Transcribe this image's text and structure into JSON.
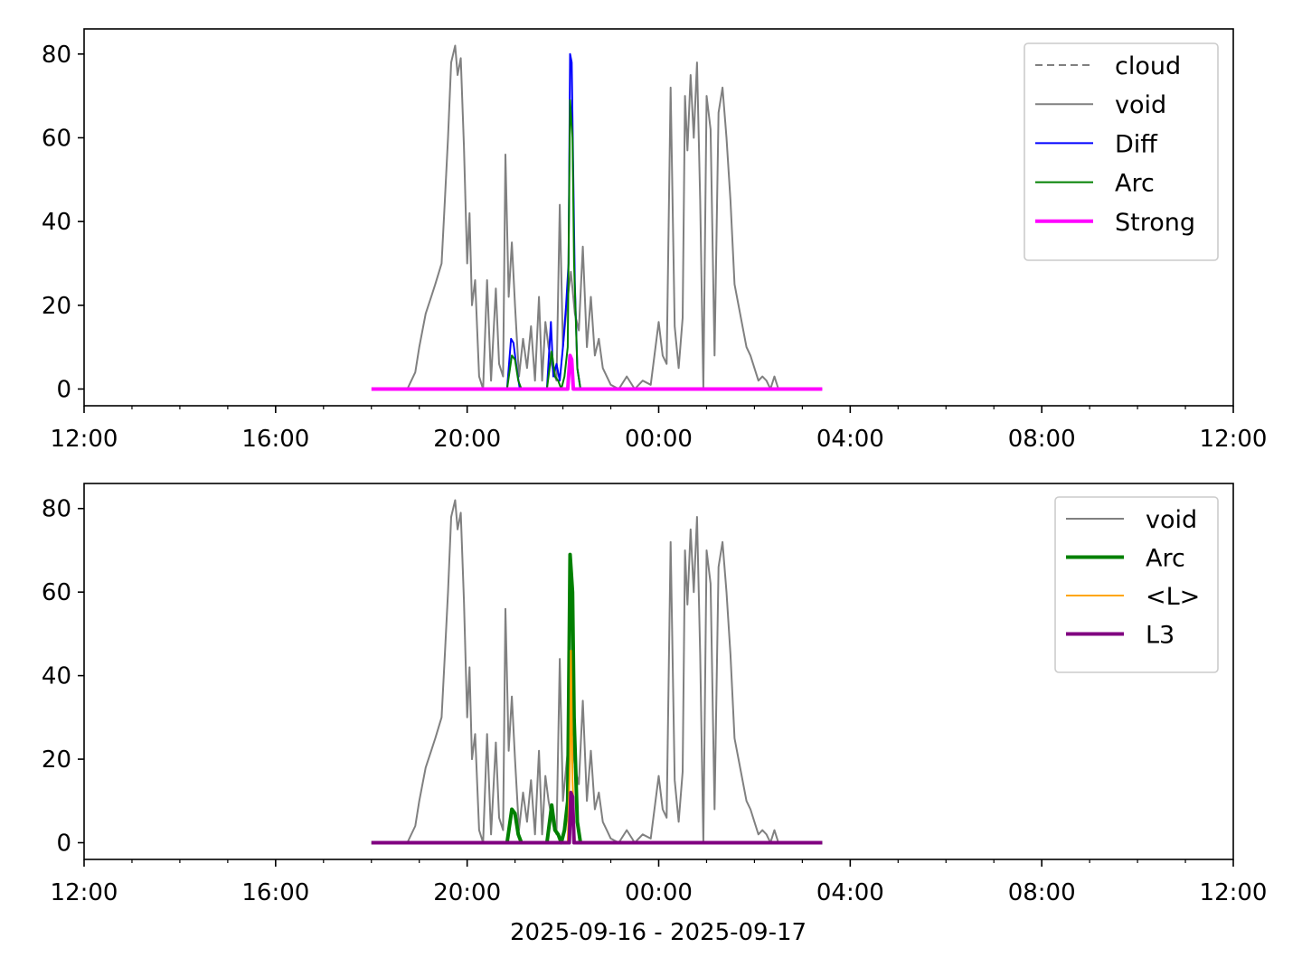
{
  "chart_data": [
    {
      "type": "line",
      "title": "",
      "xlabel": "",
      "ylabel": "",
      "xlim": [
        "2025-09-16 12:00",
        "2025-09-17 12:00"
      ],
      "ylim": [
        -4,
        86
      ],
      "xticks": [
        "12:00",
        "16:00",
        "20:00",
        "00:00",
        "04:00",
        "08:00",
        "12:00"
      ],
      "yticks": [
        "0",
        "20",
        "40",
        "60",
        "80"
      ],
      "grid": false,
      "legend_position": "top-right",
      "series": [
        {
          "name": "cloud",
          "color": "#808080",
          "style": "dashed",
          "legend_only": true,
          "x": [],
          "y": []
        },
        {
          "name": "void",
          "color": "#808080",
          "style": "solid",
          "x": [
            "2025-09-16 18:45",
            "2025-09-16 18:55",
            "2025-09-16 19:00",
            "2025-09-16 19:08",
            "2025-09-16 19:15",
            "2025-09-16 19:20",
            "2025-09-16 19:28",
            "2025-09-16 19:32",
            "2025-09-16 19:36",
            "2025-09-16 19:40",
            "2025-09-16 19:45",
            "2025-09-16 19:48",
            "2025-09-16 19:52",
            "2025-09-16 19:56",
            "2025-09-16 20:00",
            "2025-09-16 20:03",
            "2025-09-16 20:06",
            "2025-09-16 20:10",
            "2025-09-16 20:15",
            "2025-09-16 20:20",
            "2025-09-16 20:25",
            "2025-09-16 20:30",
            "2025-09-16 20:36",
            "2025-09-16 20:40",
            "2025-09-16 20:45",
            "2025-09-16 20:48",
            "2025-09-16 20:52",
            "2025-09-16 20:56",
            "2025-09-16 21:00",
            "2025-09-16 21:05",
            "2025-09-16 21:10",
            "2025-09-16 21:15",
            "2025-09-16 21:20",
            "2025-09-16 21:25",
            "2025-09-16 21:30",
            "2025-09-16 21:34",
            "2025-09-16 21:38",
            "2025-09-16 21:42",
            "2025-09-16 21:48",
            "2025-09-16 21:52",
            "2025-09-16 21:56",
            "2025-09-16 22:00",
            "2025-09-16 22:05",
            "2025-09-16 22:10",
            "2025-09-16 22:15",
            "2025-09-16 22:20",
            "2025-09-16 22:25",
            "2025-09-16 22:30",
            "2025-09-16 22:35",
            "2025-09-16 22:40",
            "2025-09-16 22:45",
            "2025-09-16 22:50",
            "2025-09-16 22:55",
            "2025-09-16 23:00",
            "2025-09-16 23:10",
            "2025-09-16 23:20",
            "2025-09-16 23:30",
            "2025-09-16 23:40",
            "2025-09-16 23:50",
            "2025-09-17 00:00",
            "2025-09-17 00:05",
            "2025-09-17 00:10",
            "2025-09-17 00:15",
            "2025-09-17 00:20",
            "2025-09-17 00:25",
            "2025-09-17 00:30",
            "2025-09-17 00:33",
            "2025-09-17 00:36",
            "2025-09-17 00:40",
            "2025-09-17 00:44",
            "2025-09-17 00:48",
            "2025-09-17 00:52",
            "2025-09-17 00:56",
            "2025-09-17 01:00",
            "2025-09-17 01:05",
            "2025-09-17 01:10",
            "2025-09-17 01:15",
            "2025-09-17 01:20",
            "2025-09-17 01:25",
            "2025-09-17 01:30",
            "2025-09-17 01:35",
            "2025-09-17 01:40",
            "2025-09-17 01:45",
            "2025-09-17 01:50",
            "2025-09-17 01:55",
            "2025-09-17 02:00",
            "2025-09-17 02:05",
            "2025-09-17 02:10",
            "2025-09-17 02:15",
            "2025-09-17 02:20",
            "2025-09-17 02:25",
            "2025-09-17 02:30",
            "2025-09-17 03:25"
          ],
          "y": [
            0,
            4,
            10,
            18,
            22,
            25,
            30,
            45,
            60,
            78,
            82,
            75,
            79,
            58,
            30,
            42,
            20,
            26,
            3,
            0,
            26,
            2,
            24,
            6,
            3,
            56,
            22,
            35,
            20,
            3,
            12,
            5,
            15,
            2,
            22,
            2,
            16,
            10,
            4,
            2,
            44,
            10,
            20,
            28,
            18,
            14,
            34,
            10,
            22,
            8,
            12,
            5,
            3,
            1,
            0,
            3,
            0,
            2,
            1,
            16,
            8,
            6,
            72,
            15,
            5,
            17,
            70,
            57,
            75,
            60,
            78,
            45,
            0,
            70,
            62,
            8,
            66,
            72,
            60,
            45,
            25,
            20,
            15,
            10,
            8,
            5,
            2,
            3,
            2,
            0,
            3,
            0,
            0
          ]
        },
        {
          "name": "Diff",
          "color": "#0000ff",
          "style": "solid",
          "x": [
            "2025-09-16 20:50",
            "2025-09-16 20:55",
            "2025-09-16 20:58",
            "2025-09-16 21:02",
            "2025-09-16 21:06",
            "2025-09-16 21:40",
            "2025-09-16 21:45",
            "2025-09-16 21:48",
            "2025-09-16 21:52",
            "2025-09-16 21:56",
            "2025-09-16 22:00",
            "2025-09-16 22:04",
            "2025-09-16 22:07",
            "2025-09-16 22:09",
            "2025-09-16 22:11",
            "2025-09-16 22:13",
            "2025-09-16 22:15",
            "2025-09-16 22:18",
            "2025-09-16 22:22"
          ],
          "y": [
            0,
            12,
            11,
            5,
            0,
            0,
            16,
            3,
            6,
            2,
            10,
            20,
            30,
            80,
            78,
            50,
            25,
            5,
            0
          ]
        },
        {
          "name": "Arc",
          "color": "#008000",
          "style": "solid",
          "x": [
            "2025-09-16 20:50",
            "2025-09-16 20:56",
            "2025-09-16 21:00",
            "2025-09-16 21:04",
            "2025-09-16 21:08",
            "2025-09-16 21:40",
            "2025-09-16 21:46",
            "2025-09-16 21:50",
            "2025-09-16 21:54",
            "2025-09-16 21:58",
            "2025-09-16 22:02",
            "2025-09-16 22:06",
            "2025-09-16 22:09",
            "2025-09-16 22:12",
            "2025-09-16 22:14",
            "2025-09-16 22:18",
            "2025-09-16 22:22"
          ],
          "y": [
            0,
            8,
            7,
            2,
            0,
            0,
            9,
            3,
            2,
            0,
            3,
            10,
            69,
            60,
            30,
            5,
            0
          ]
        },
        {
          "name": "Strong",
          "color": "#ff00ff",
          "style": "solid",
          "x": [
            "2025-09-16 18:00",
            "2025-09-16 22:06",
            "2025-09-16 22:09",
            "2025-09-16 22:11",
            "2025-09-16 22:13",
            "2025-09-17 03:25"
          ],
          "y": [
            0,
            0,
            8,
            7,
            0,
            0
          ]
        }
      ]
    },
    {
      "type": "line",
      "title": "",
      "xlabel": "2025-09-16 - 2025-09-17",
      "ylabel": "",
      "xlim": [
        "2025-09-16 12:00",
        "2025-09-17 12:00"
      ],
      "ylim": [
        -4,
        86
      ],
      "xticks": [
        "12:00",
        "16:00",
        "20:00",
        "00:00",
        "04:00",
        "08:00",
        "12:00"
      ],
      "yticks": [
        "0",
        "20",
        "40",
        "60",
        "80"
      ],
      "grid": false,
      "legend_position": "top-right",
      "series": [
        {
          "name": "void",
          "color": "#808080",
          "style": "solid",
          "x": [
            "2025-09-16 18:45",
            "2025-09-16 18:55",
            "2025-09-16 19:00",
            "2025-09-16 19:08",
            "2025-09-16 19:15",
            "2025-09-16 19:20",
            "2025-09-16 19:28",
            "2025-09-16 19:32",
            "2025-09-16 19:36",
            "2025-09-16 19:40",
            "2025-09-16 19:45",
            "2025-09-16 19:48",
            "2025-09-16 19:52",
            "2025-09-16 19:56",
            "2025-09-16 20:00",
            "2025-09-16 20:03",
            "2025-09-16 20:06",
            "2025-09-16 20:10",
            "2025-09-16 20:15",
            "2025-09-16 20:20",
            "2025-09-16 20:25",
            "2025-09-16 20:30",
            "2025-09-16 20:36",
            "2025-09-16 20:40",
            "2025-09-16 20:45",
            "2025-09-16 20:48",
            "2025-09-16 20:52",
            "2025-09-16 20:56",
            "2025-09-16 21:00",
            "2025-09-16 21:05",
            "2025-09-16 21:10",
            "2025-09-16 21:15",
            "2025-09-16 21:20",
            "2025-09-16 21:25",
            "2025-09-16 21:30",
            "2025-09-16 21:34",
            "2025-09-16 21:38",
            "2025-09-16 21:42",
            "2025-09-16 21:48",
            "2025-09-16 21:52",
            "2025-09-16 21:56",
            "2025-09-16 22:00",
            "2025-09-16 22:05",
            "2025-09-16 22:10",
            "2025-09-16 22:15",
            "2025-09-16 22:20",
            "2025-09-16 22:25",
            "2025-09-16 22:30",
            "2025-09-16 22:35",
            "2025-09-16 22:40",
            "2025-09-16 22:45",
            "2025-09-16 22:50",
            "2025-09-16 22:55",
            "2025-09-16 23:00",
            "2025-09-16 23:10",
            "2025-09-16 23:20",
            "2025-09-16 23:30",
            "2025-09-16 23:40",
            "2025-09-16 23:50",
            "2025-09-17 00:00",
            "2025-09-17 00:05",
            "2025-09-17 00:10",
            "2025-09-17 00:15",
            "2025-09-17 00:20",
            "2025-09-17 00:25",
            "2025-09-17 00:30",
            "2025-09-17 00:33",
            "2025-09-17 00:36",
            "2025-09-17 00:40",
            "2025-09-17 00:44",
            "2025-09-17 00:48",
            "2025-09-17 00:52",
            "2025-09-17 00:56",
            "2025-09-17 01:00",
            "2025-09-17 01:05",
            "2025-09-17 01:10",
            "2025-09-17 01:15",
            "2025-09-17 01:20",
            "2025-09-17 01:25",
            "2025-09-17 01:30",
            "2025-09-17 01:35",
            "2025-09-17 01:40",
            "2025-09-17 01:45",
            "2025-09-17 01:50",
            "2025-09-17 01:55",
            "2025-09-17 02:00",
            "2025-09-17 02:05",
            "2025-09-17 02:10",
            "2025-09-17 02:15",
            "2025-09-17 02:20",
            "2025-09-17 02:25",
            "2025-09-17 02:30",
            "2025-09-17 03:25"
          ],
          "y": [
            0,
            4,
            10,
            18,
            22,
            25,
            30,
            45,
            60,
            78,
            82,
            75,
            79,
            58,
            30,
            42,
            20,
            26,
            3,
            0,
            26,
            2,
            24,
            6,
            3,
            56,
            22,
            35,
            20,
            3,
            12,
            5,
            15,
            2,
            22,
            2,
            16,
            10,
            4,
            2,
            44,
            10,
            20,
            28,
            18,
            14,
            34,
            10,
            22,
            8,
            12,
            5,
            3,
            1,
            0,
            3,
            0,
            2,
            1,
            16,
            8,
            6,
            72,
            15,
            5,
            17,
            70,
            57,
            75,
            60,
            78,
            45,
            0,
            70,
            62,
            8,
            66,
            72,
            60,
            45,
            25,
            20,
            15,
            10,
            8,
            5,
            2,
            3,
            2,
            0,
            3,
            0,
            0
          ]
        },
        {
          "name": "Arc",
          "color": "#008000",
          "style": "solid",
          "thick": true,
          "x": [
            "2025-09-16 18:00",
            "2025-09-16 20:50",
            "2025-09-16 20:56",
            "2025-09-16 21:00",
            "2025-09-16 21:04",
            "2025-09-16 21:08",
            "2025-09-16 21:40",
            "2025-09-16 21:46",
            "2025-09-16 21:50",
            "2025-09-16 21:54",
            "2025-09-16 21:58",
            "2025-09-16 22:02",
            "2025-09-16 22:06",
            "2025-09-16 22:09",
            "2025-09-16 22:12",
            "2025-09-16 22:14",
            "2025-09-16 22:18",
            "2025-09-16 22:22",
            "2025-09-17 03:25"
          ],
          "y": [
            0,
            0,
            8,
            7,
            2,
            0,
            0,
            9,
            3,
            2,
            0,
            3,
            10,
            69,
            60,
            30,
            5,
            0,
            0
          ]
        },
        {
          "name": "<L>",
          "color": "#ffa500",
          "style": "solid",
          "x": [
            "2025-09-16 22:06",
            "2025-09-16 22:09",
            "2025-09-16 22:10",
            "2025-09-16 22:12",
            "2025-09-16 22:15"
          ],
          "y": [
            0,
            20,
            46,
            15,
            0
          ]
        },
        {
          "name": "L3",
          "color": "#800080",
          "style": "solid",
          "thick": true,
          "x": [
            "2025-09-16 18:00",
            "2025-09-16 22:08",
            "2025-09-16 22:10",
            "2025-09-16 22:12",
            "2025-09-16 22:14",
            "2025-09-17 03:25"
          ],
          "y": [
            0,
            0,
            12,
            11,
            0,
            0
          ]
        }
      ]
    }
  ]
}
